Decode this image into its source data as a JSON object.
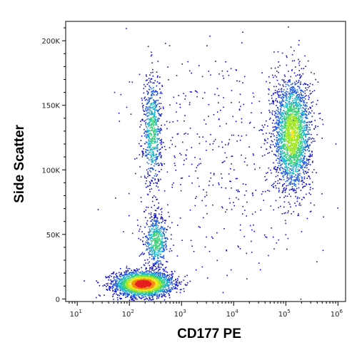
{
  "chart_data": {
    "type": "scatter",
    "title": "",
    "xlabel": "CD177 PE",
    "ylabel": "Side Scatter",
    "x_scale": "log",
    "x_range": [
      6,
      1400000
    ],
    "x_ticks": [
      {
        "value": 10,
        "base": "10",
        "exp": "1"
      },
      {
        "value": 100,
        "base": "10",
        "exp": "2"
      },
      {
        "value": 1000,
        "base": "10",
        "exp": "3"
      },
      {
        "value": 10000,
        "base": "10",
        "exp": "4"
      },
      {
        "value": 100000,
        "base": "10",
        "exp": "5"
      },
      {
        "value": 1000000,
        "base": "10",
        "exp": "6"
      }
    ],
    "y_range": [
      -2000,
      215000
    ],
    "y_ticks": [
      {
        "value": 0,
        "label": "0"
      },
      {
        "value": 50000,
        "label": "50K"
      },
      {
        "value": 100000,
        "label": "100K"
      },
      {
        "value": 150000,
        "label": "150K"
      },
      {
        "value": 200000,
        "label": "200K"
      }
    ],
    "grid": false,
    "legend": "none",
    "density_colors": [
      "#1010c8",
      "#1e5adc",
      "#20b4c8",
      "#3cd278",
      "#a0e628",
      "#f0e614",
      "#f08c14",
      "#e61e1e"
    ],
    "populations": [
      {
        "center_x": 180,
        "center_y": 12000,
        "spread_log_x": 0.28,
        "spread_y": 5000,
        "count": 2600,
        "peak": 1.0
      },
      {
        "center_x": 320,
        "center_y": 45000,
        "spread_log_x": 0.12,
        "spread_y": 10000,
        "count": 550,
        "peak": 0.45
      },
      {
        "center_x": 270,
        "center_y": 130000,
        "spread_log_x": 0.09,
        "spread_y": 22000,
        "count": 700,
        "peak": 0.4
      },
      {
        "center_x": 130000,
        "center_y": 128000,
        "spread_log_x": 0.18,
        "spread_y": 22000,
        "count": 2400,
        "peak": 0.6
      },
      {
        "center_x": 6000,
        "center_y": 110000,
        "spread_log_x": 0.9,
        "spread_y": 45000,
        "count": 450,
        "peak": 0.05
      }
    ]
  }
}
